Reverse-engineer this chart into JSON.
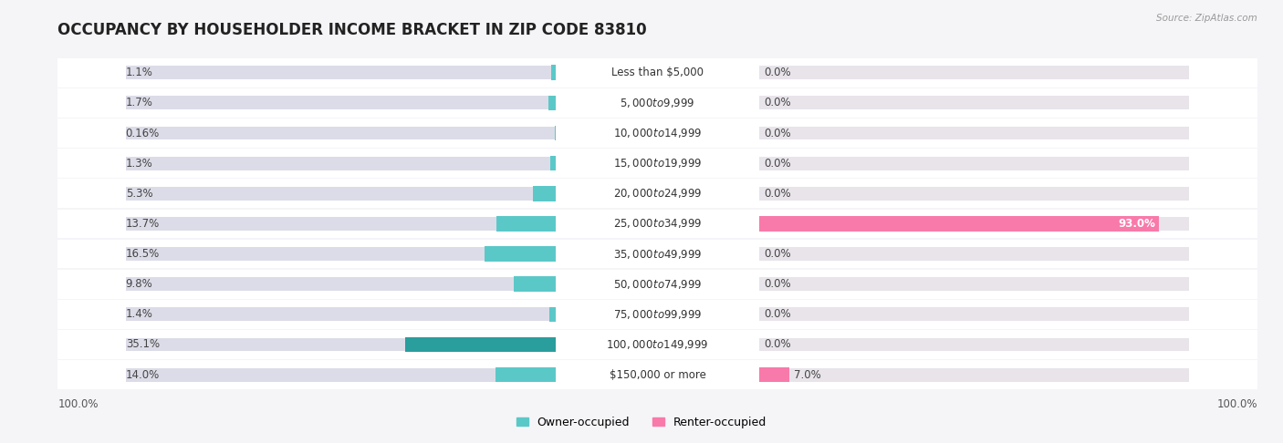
{
  "title": "OCCUPANCY BY HOUSEHOLDER INCOME BRACKET IN ZIP CODE 83810",
  "source": "Source: ZipAtlas.com",
  "categories": [
    "Less than $5,000",
    "$5,000 to $9,999",
    "$10,000 to $14,999",
    "$15,000 to $19,999",
    "$20,000 to $24,999",
    "$25,000 to $34,999",
    "$35,000 to $49,999",
    "$50,000 to $74,999",
    "$75,000 to $99,999",
    "$100,000 to $149,999",
    "$150,000 or more"
  ],
  "owner_values": [
    1.1,
    1.7,
    0.16,
    1.3,
    5.3,
    13.7,
    16.5,
    9.8,
    1.4,
    35.1,
    14.0
  ],
  "renter_values": [
    0.0,
    0.0,
    0.0,
    0.0,
    0.0,
    93.0,
    0.0,
    0.0,
    0.0,
    0.0,
    7.0
  ],
  "owner_color": "#5bc8c8",
  "renter_color": "#f87aaa",
  "owner_color_dark": "#2a9d9d",
  "title_fontsize": 12,
  "label_fontsize": 8.5,
  "legend_fontsize": 9,
  "max_owner": 100,
  "max_renter": 100,
  "bg_color": "#f5f5f8",
  "row_color_light": "#efefef",
  "bar_track_color_owner": "#dcdce8",
  "bar_track_color_renter": "#e8e4ea"
}
